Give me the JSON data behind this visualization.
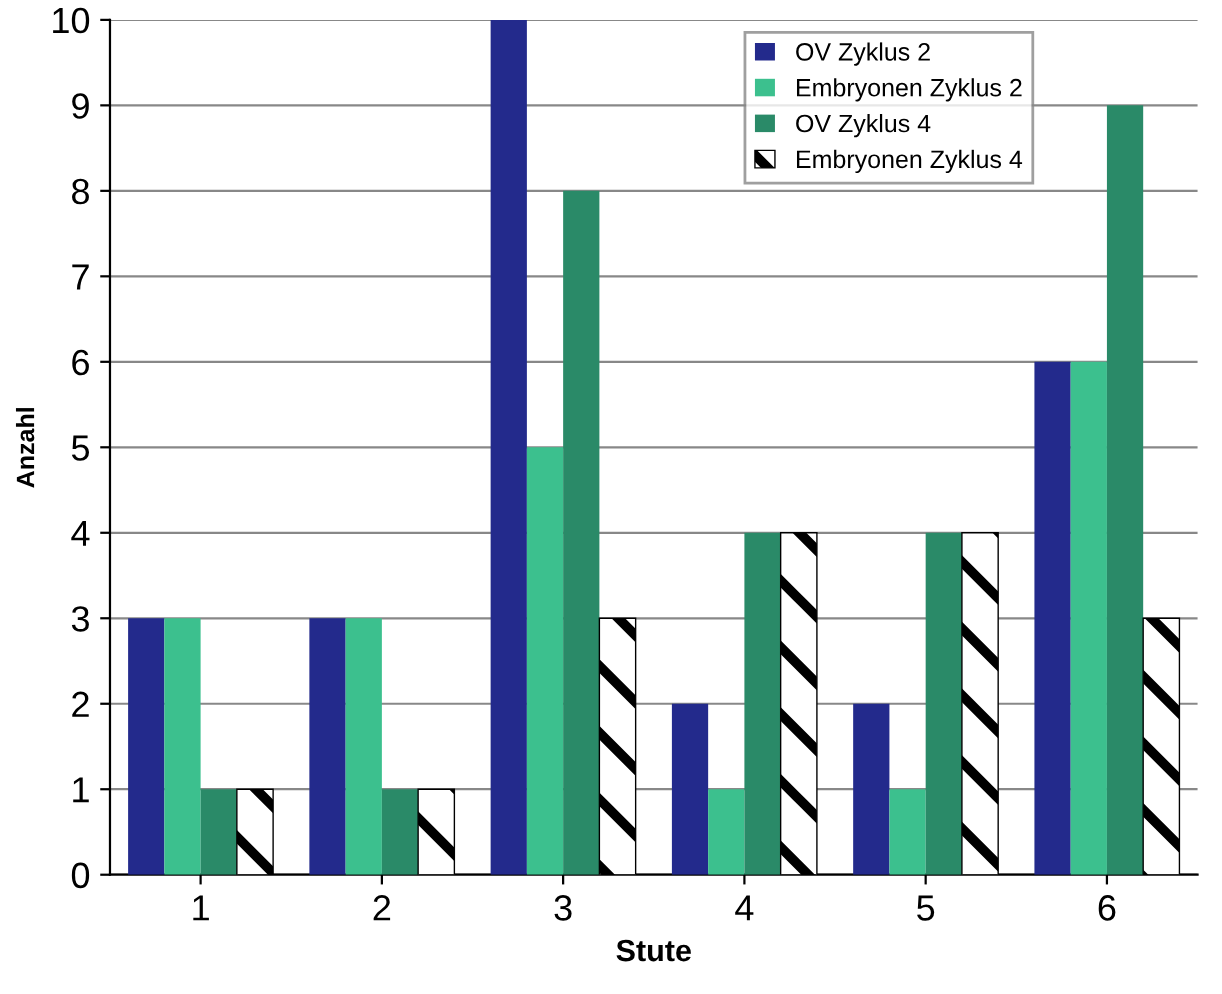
{
  "chart_data": {
    "type": "bar",
    "xlabel": "Stute",
    "ylabel": "Anzahl",
    "categories": [
      "1",
      "2",
      "3",
      "4",
      "5",
      "6"
    ],
    "series": [
      {
        "name": "OV Zyklus 2",
        "color": "#232a8c",
        "values": [
          3,
          3,
          10,
          2,
          2,
          6
        ]
      },
      {
        "name": "Embryonen Zyklus 2",
        "color": "#3cc08e",
        "values": [
          3,
          3,
          5,
          1,
          1,
          6
        ]
      },
      {
        "name": "OV Zyklus 4",
        "color": "#2a8a68",
        "values": [
          1,
          1,
          8,
          4,
          4,
          9
        ]
      },
      {
        "name": "Embryonen Zyklus 4",
        "color": "#000000",
        "values": [
          1,
          1,
          3,
          4,
          4,
          3
        ]
      }
    ],
    "ylim": [
      0,
      10
    ],
    "yticks": [
      0,
      1,
      2,
      3,
      4,
      5,
      6,
      7,
      8,
      9,
      10
    ],
    "grid": "y",
    "legend": "top right"
  }
}
